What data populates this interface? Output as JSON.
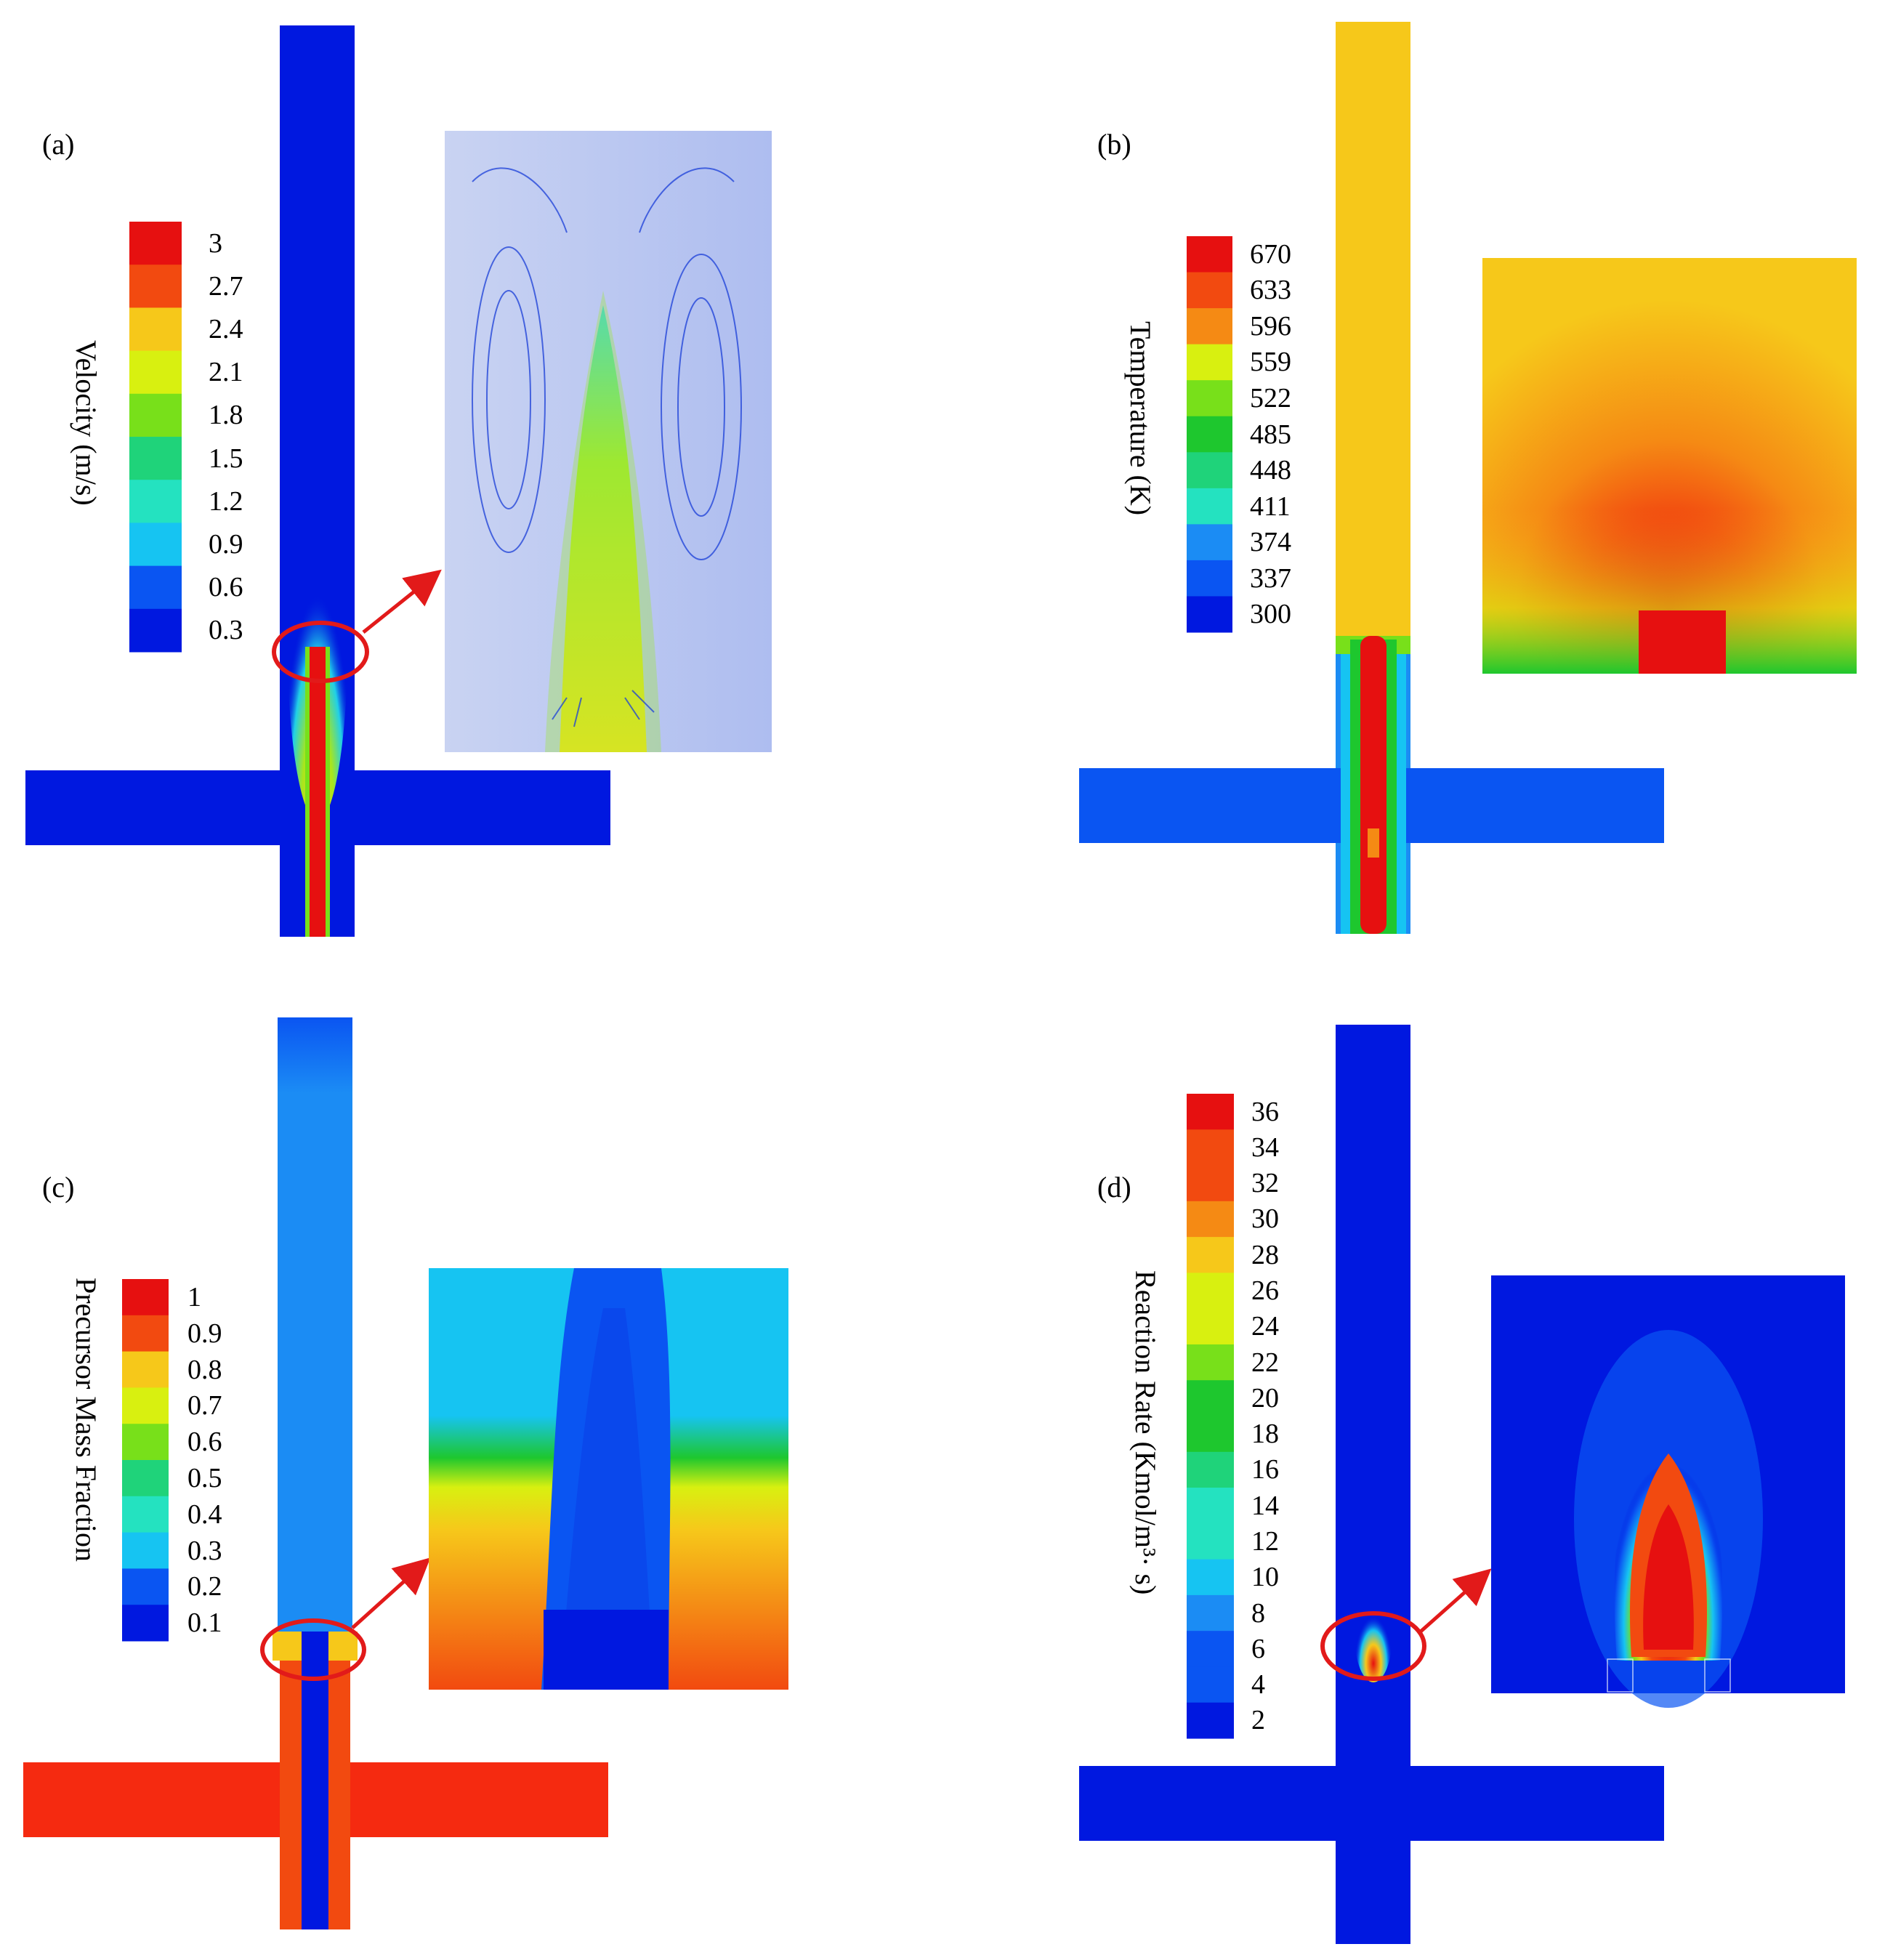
{
  "colormap": [
    "#0018e0",
    "#0a55f2",
    "#1b8cf4",
    "#16c4f2",
    "#24e2c0",
    "#1fd37a",
    "#1ec72e",
    "#78e01a",
    "#d8f010",
    "#f6c81a",
    "#f58a14",
    "#f24a10",
    "#e61010"
  ],
  "panels": [
    {
      "id": "a",
      "label": "(a)",
      "legend_title": "Velocity  (m/s)",
      "ticks": [
        "3",
        "2.7",
        "2.4",
        "2.1",
        "1.8",
        "1.5",
        "1.2",
        "0.9",
        "0.6",
        "0.3"
      ]
    },
    {
      "id": "b",
      "label": "(b)",
      "legend_title": "Temperature  (K)",
      "ticks": [
        "670",
        "633",
        "596",
        "559",
        "522",
        "485",
        "448",
        "411",
        "374",
        "337",
        "300"
      ]
    },
    {
      "id": "c",
      "label": "(c)",
      "legend_title": "Precursor  Mass  Fraction",
      "ticks": [
        "1",
        "0.9",
        "0.8",
        "0.7",
        "0.6",
        "0.5",
        "0.4",
        "0.3",
        "0.2",
        "0.1"
      ]
    },
    {
      "id": "d",
      "label": "(d)",
      "legend_title": "Reaction  Rate  (Kmol/m³· s)",
      "ticks": [
        "36",
        "34",
        "32",
        "30",
        "28",
        "26",
        "24",
        "22",
        "20",
        "18",
        "16",
        "14",
        "12",
        "10",
        "8",
        "6",
        "4",
        "2"
      ]
    }
  ]
}
